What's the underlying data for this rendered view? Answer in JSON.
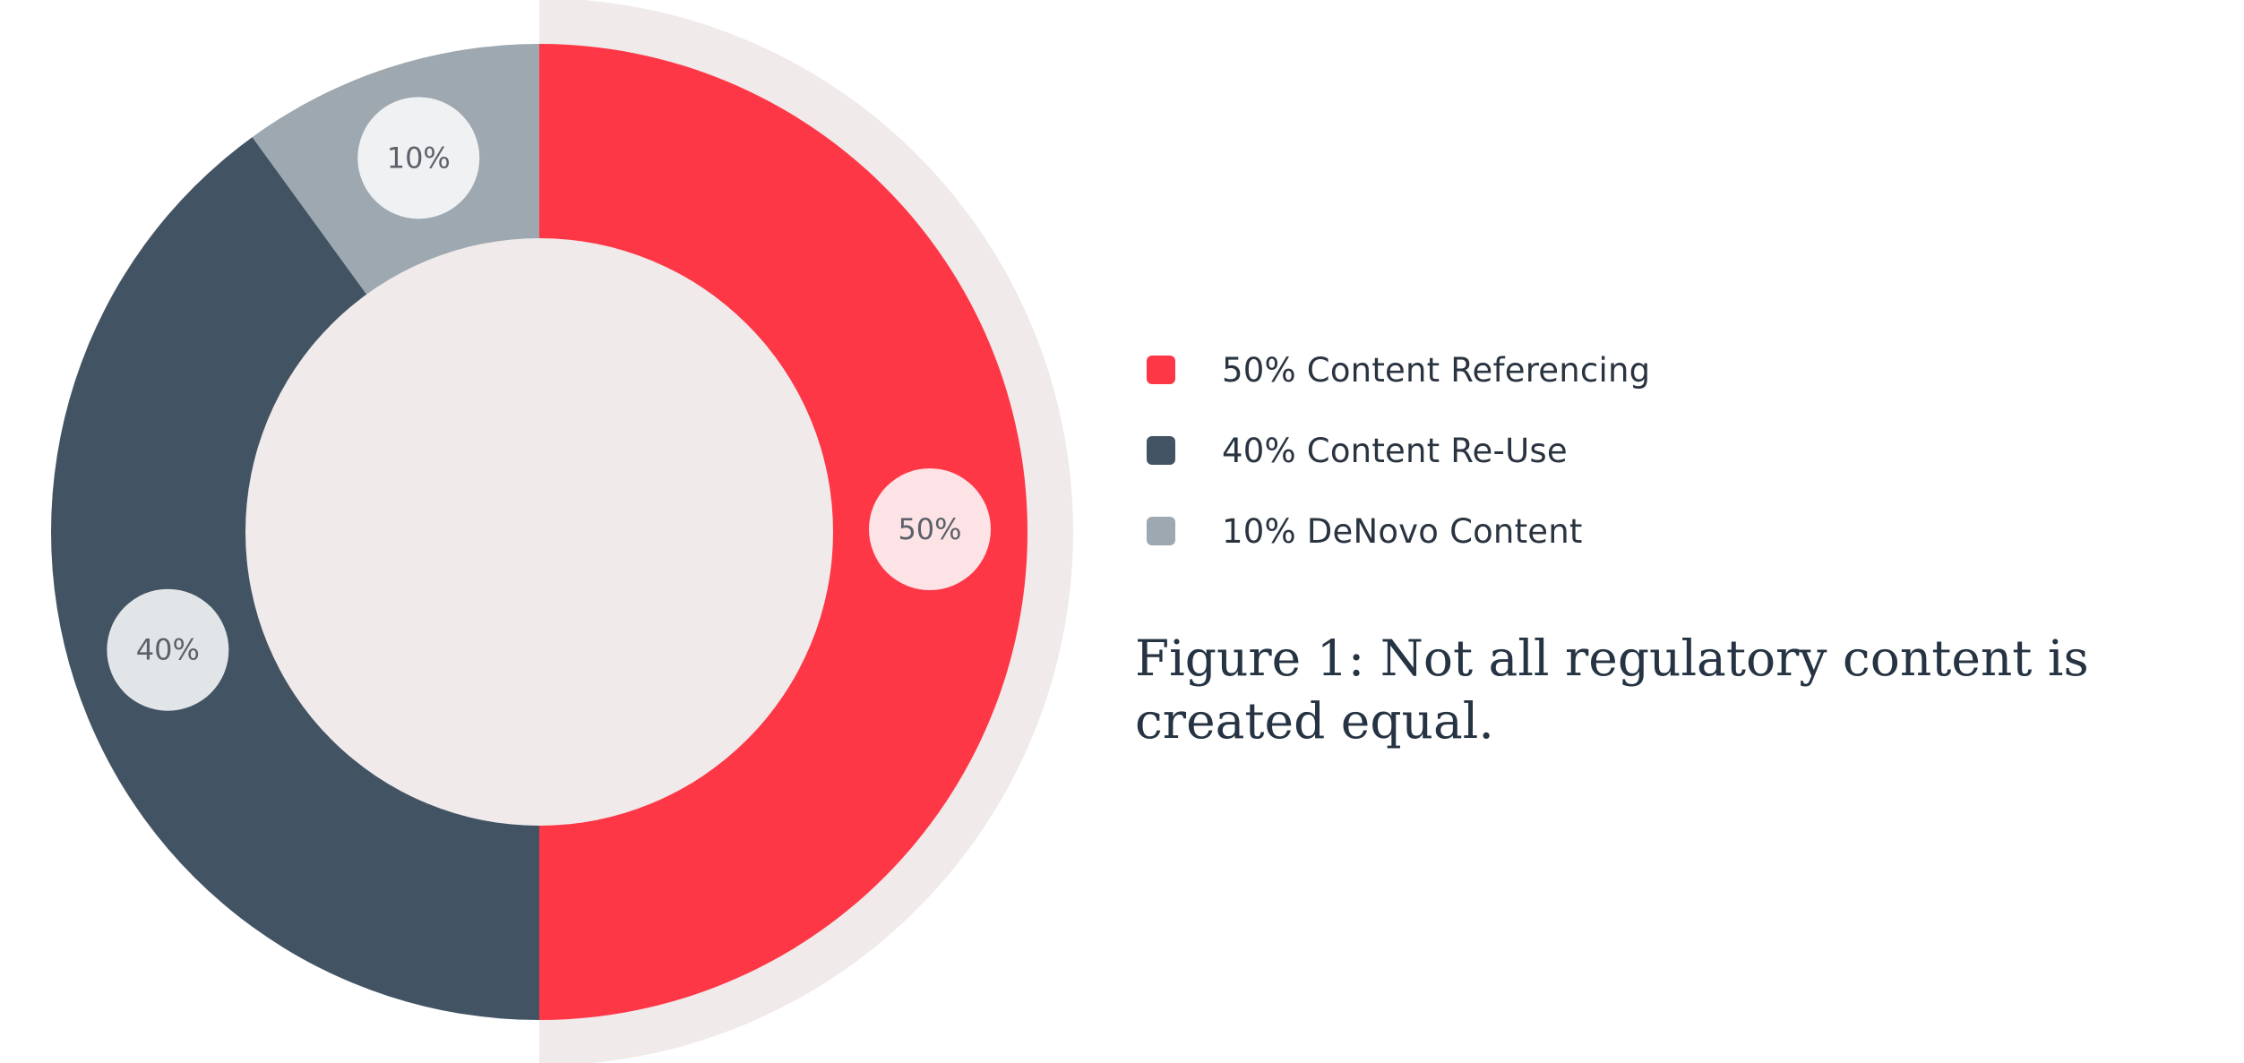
{
  "chart_data": {
    "type": "pie",
    "variant": "donut",
    "title": "",
    "categories": [
      "Content Referencing",
      "Content Re-Use",
      "DeNovo Content"
    ],
    "values": [
      50,
      40,
      10
    ],
    "unit": "%",
    "slice_labels": [
      "50%",
      "40%",
      "10%"
    ],
    "colors": [
      "#fe3747",
      "#425463",
      "#9ea8b0"
    ],
    "label_bubble_colors": [
      "#fde3e5",
      "#e2e5e8",
      "#f0f1f3"
    ],
    "center_fill": "#f0eaea",
    "backdrop_fill": "#f0eaea",
    "start_angle": "top",
    "direction": "clockwise",
    "legend_position": "right"
  },
  "legend": {
    "items": [
      {
        "label": "50% Content Referencing",
        "color": "#fe3747"
      },
      {
        "label": "40% Content Re-Use",
        "color": "#425463"
      },
      {
        "label": "10% DeNovo Content",
        "color": "#9ea8b0"
      }
    ]
  },
  "caption": "Figure 1: Not all regulatory content is created equal."
}
